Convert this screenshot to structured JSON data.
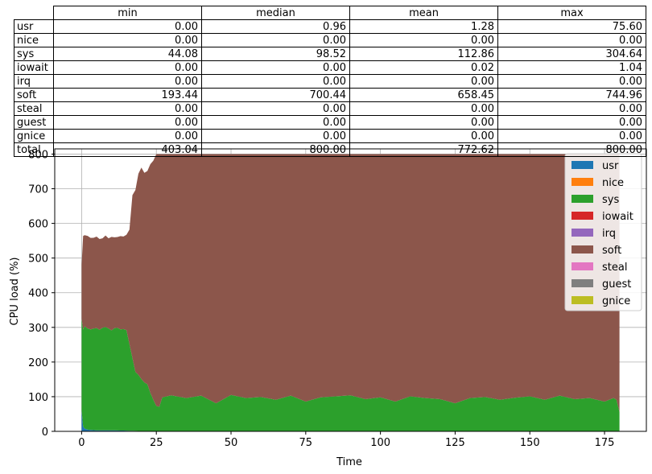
{
  "table": {
    "columns": [
      "min",
      "median",
      "mean",
      "max"
    ],
    "rows": [
      {
        "label": "usr",
        "values": [
          "0.00",
          "0.96",
          "1.28",
          "75.60"
        ]
      },
      {
        "label": "nice",
        "values": [
          "0.00",
          "0.00",
          "0.00",
          "0.00"
        ]
      },
      {
        "label": "sys",
        "values": [
          "44.08",
          "98.52",
          "112.86",
          "304.64"
        ]
      },
      {
        "label": "iowait",
        "values": [
          "0.00",
          "0.00",
          "0.02",
          "1.04"
        ]
      },
      {
        "label": "irq",
        "values": [
          "0.00",
          "0.00",
          "0.00",
          "0.00"
        ]
      },
      {
        "label": "soft",
        "values": [
          "193.44",
          "700.44",
          "658.45",
          "744.96"
        ]
      },
      {
        "label": "steal",
        "values": [
          "0.00",
          "0.00",
          "0.00",
          "0.00"
        ]
      },
      {
        "label": "guest",
        "values": [
          "0.00",
          "0.00",
          "0.00",
          "0.00"
        ]
      },
      {
        "label": "gnice",
        "values": [
          "0.00",
          "0.00",
          "0.00",
          "0.00"
        ]
      },
      {
        "label": "total",
        "values": [
          "403.04",
          "800.00",
          "772.62",
          "800.00"
        ]
      }
    ]
  },
  "chart_data": {
    "type": "area",
    "stacked": true,
    "xlabel": "Time",
    "ylabel": "CPU load (%)",
    "xlim": [
      -9,
      189
    ],
    "ylim": [
      0,
      815
    ],
    "xticks": [
      0,
      25,
      50,
      75,
      100,
      125,
      150,
      175
    ],
    "yticks": [
      0,
      100,
      200,
      300,
      400,
      500,
      600,
      700,
      800
    ],
    "grid": true,
    "legend_position": "upper right",
    "series": [
      {
        "name": "usr",
        "color": "#1f77b4",
        "points": [
          [
            0,
            60
          ],
          [
            0.5,
            14
          ],
          [
            1,
            8
          ],
          [
            2,
            5
          ],
          [
            3,
            4
          ],
          [
            5,
            3
          ],
          [
            10,
            3
          ],
          [
            15,
            2
          ],
          [
            20,
            1
          ],
          [
            25,
            1
          ],
          [
            180,
            1
          ]
        ]
      },
      {
        "name": "nice",
        "color": "#ff7f0e",
        "points": [
          [
            0,
            0
          ],
          [
            180,
            0
          ]
        ]
      },
      {
        "name": "sys",
        "color": "#2ca02c",
        "points": [
          [
            0,
            265
          ],
          [
            0.5,
            280
          ],
          [
            1,
            295
          ],
          [
            2,
            292
          ],
          [
            3,
            290
          ],
          [
            4,
            293
          ],
          [
            5,
            295
          ],
          [
            6,
            290
          ],
          [
            7,
            296
          ],
          [
            8,
            298
          ],
          [
            9,
            294
          ],
          [
            10,
            288
          ],
          [
            11,
            295
          ],
          [
            12,
            296
          ],
          [
            13,
            292
          ],
          [
            14,
            293
          ],
          [
            15,
            290
          ],
          [
            16,
            250
          ],
          [
            17,
            210
          ],
          [
            18,
            170
          ],
          [
            19,
            162
          ],
          [
            20,
            150
          ],
          [
            21,
            140
          ],
          [
            22,
            135
          ],
          [
            23,
            110
          ],
          [
            24,
            90
          ],
          [
            25,
            72
          ],
          [
            26,
            70
          ],
          [
            27,
            97
          ],
          [
            30,
            103
          ],
          [
            35,
            95
          ],
          [
            40,
            102
          ],
          [
            45,
            80
          ],
          [
            50,
            104
          ],
          [
            55,
            95
          ],
          [
            60,
            98
          ],
          [
            65,
            90
          ],
          [
            70,
            102
          ],
          [
            75,
            85
          ],
          [
            80,
            97
          ],
          [
            85,
            100
          ],
          [
            90,
            103
          ],
          [
            95,
            92
          ],
          [
            100,
            97
          ],
          [
            105,
            85
          ],
          [
            110,
            100
          ],
          [
            115,
            95
          ],
          [
            120,
            92
          ],
          [
            125,
            80
          ],
          [
            130,
            95
          ],
          [
            135,
            98
          ],
          [
            140,
            90
          ],
          [
            145,
            96
          ],
          [
            150,
            100
          ],
          [
            155,
            90
          ],
          [
            160,
            102
          ],
          [
            165,
            92
          ],
          [
            170,
            95
          ],
          [
            175,
            85
          ],
          [
            178,
            95
          ],
          [
            179,
            90
          ],
          [
            180,
            55
          ]
        ]
      },
      {
        "name": "iowait",
        "color": "#d62728",
        "points": [
          [
            0,
            1
          ],
          [
            0.5,
            0
          ],
          [
            180,
            0
          ]
        ]
      },
      {
        "name": "irq",
        "color": "#9467bd",
        "points": [
          [
            0,
            0
          ],
          [
            180,
            0
          ]
        ]
      },
      {
        "name": "soft",
        "color": "#8c564b",
        "points": [
          [
            0,
            155
          ],
          [
            0.5,
            270
          ],
          [
            1,
            263
          ],
          [
            2,
            267
          ],
          [
            3,
            264
          ],
          [
            4,
            262
          ],
          [
            5,
            264
          ],
          [
            6,
            262
          ],
          [
            7,
            258
          ],
          [
            8,
            264
          ],
          [
            9,
            260
          ],
          [
            10,
            270
          ],
          [
            11,
            262
          ],
          [
            12,
            262
          ],
          [
            13,
            269
          ],
          [
            14,
            267
          ],
          [
            15,
            275
          ],
          [
            16,
            330
          ],
          [
            17,
            470
          ],
          [
            18,
            525
          ],
          [
            19,
            580
          ],
          [
            20,
            610
          ],
          [
            21,
            605
          ],
          [
            22,
            615
          ],
          [
            23,
            660
          ],
          [
            24,
            690
          ],
          [
            25,
            727
          ],
          [
            26,
            729
          ],
          [
            27,
            702
          ],
          [
            30,
            696
          ],
          [
            35,
            704
          ],
          [
            40,
            697
          ],
          [
            45,
            719
          ],
          [
            50,
            695
          ],
          [
            55,
            704
          ],
          [
            60,
            701
          ],
          [
            65,
            709
          ],
          [
            70,
            697
          ],
          [
            75,
            714
          ],
          [
            80,
            702
          ],
          [
            85,
            699
          ],
          [
            90,
            696
          ],
          [
            95,
            707
          ],
          [
            100,
            702
          ],
          [
            105,
            714
          ],
          [
            110,
            699
          ],
          [
            115,
            704
          ],
          [
            120,
            707
          ],
          [
            125,
            719
          ],
          [
            130,
            704
          ],
          [
            135,
            701
          ],
          [
            140,
            709
          ],
          [
            145,
            703
          ],
          [
            150,
            699
          ],
          [
            155,
            709
          ],
          [
            160,
            697
          ],
          [
            165,
            707
          ],
          [
            170,
            704
          ],
          [
            175,
            714
          ],
          [
            178,
            704
          ],
          [
            179,
            709
          ],
          [
            180,
            745
          ]
        ]
      },
      {
        "name": "steal",
        "color": "#e377c2",
        "points": [
          [
            0,
            0
          ],
          [
            180,
            0
          ]
        ]
      },
      {
        "name": "guest",
        "color": "#7f7f7f",
        "points": [
          [
            0,
            0
          ],
          [
            180,
            0
          ]
        ]
      },
      {
        "name": "gnice",
        "color": "#bcbd22",
        "points": [
          [
            0,
            0
          ],
          [
            180,
            0
          ]
        ]
      }
    ]
  }
}
